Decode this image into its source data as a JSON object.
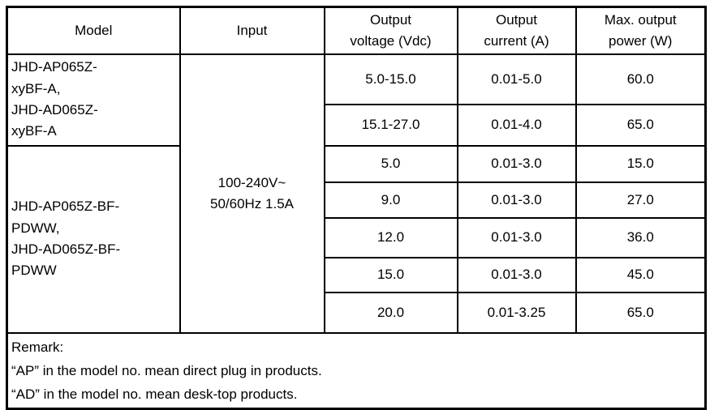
{
  "colors": {
    "border": "#000000",
    "background": "#ffffff",
    "text": "#000000"
  },
  "table": {
    "headers": {
      "model": "Model",
      "input": "Input",
      "output_voltage": "Output\nvoltage (Vdc)",
      "output_current": "Output\ncurrent (A)",
      "max_output_power": "Max. output\npower (W)"
    },
    "model_groups": [
      {
        "label": "JHD-AP065Z-\nxyBF-A,\nJHD-AD065Z-\nxyBF-A",
        "rowspan": 2
      },
      {
        "label": "JHD-AP065Z-BF-\nPDWW,\nJHD-AD065Z-BF-\nPDWW",
        "rowspan": 5
      }
    ],
    "input_value": "100-240V~\n50/60Hz 1.5A",
    "rows": [
      {
        "voltage": "5.0-15.0",
        "current": "0.01-5.0",
        "power": "60.0"
      },
      {
        "voltage": "15.1-27.0",
        "current": "0.01-4.0",
        "power": "65.0"
      },
      {
        "voltage": "5.0",
        "current": "0.01-3.0",
        "power": "15.0"
      },
      {
        "voltage": "9.0",
        "current": "0.01-3.0",
        "power": "27.0"
      },
      {
        "voltage": "12.0",
        "current": "0.01-3.0",
        "power": "36.0"
      },
      {
        "voltage": "15.0",
        "current": "0.01-3.0",
        "power": "45.0"
      },
      {
        "voltage": "20.0",
        "current": "0.01-3.25",
        "power": "65.0"
      }
    ],
    "remark": {
      "title": "Remark:",
      "line1": "“AP” in the model no. mean direct plug in products.",
      "line2": "“AD” in the model no. mean desk-top products."
    }
  }
}
